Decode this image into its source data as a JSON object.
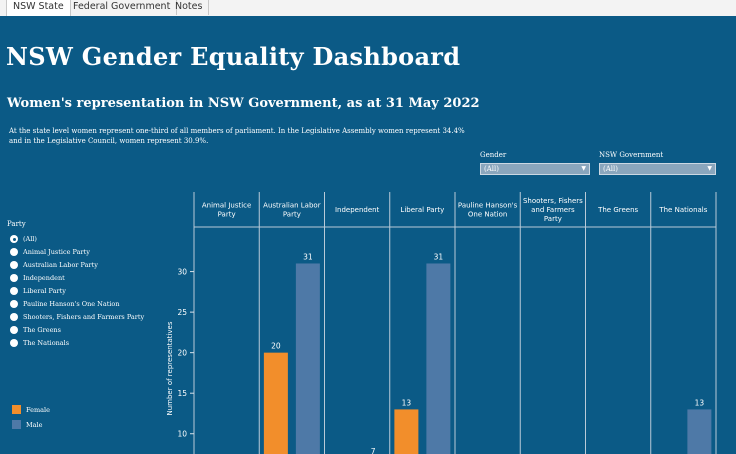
{
  "tabs": [
    {
      "label": "NSW State",
      "active": true
    },
    {
      "label": "Federal Government",
      "active": false
    },
    {
      "label": "Notes",
      "active": false
    }
  ],
  "dashboard": {
    "title": "NSW Gender Equality Dashboard",
    "subtitle": "Women's representation in NSW Government, as at 31 May 2022",
    "description": "At the state level women represent one-third of all members of parliament. In the Legislative Assembly women represent 34.4% and in the Legislative Council, women represent 30.9%."
  },
  "filters": {
    "gender": {
      "label": "Gender",
      "value": "(All)"
    },
    "nsw_government": {
      "label": "NSW Government",
      "value": "(All)"
    }
  },
  "party_filter": {
    "title": "Party",
    "options": [
      "(All)",
      "Animal Justice Party",
      "Australian Labor Party",
      "Independent",
      "Liberal Party",
      "Pauline Hanson's One Nation",
      "Shooters, Fishers and Farmers Party",
      "The Greens",
      "The Nationals"
    ],
    "selected": "(All)"
  },
  "colors": {
    "background": "#0b5a86",
    "female": "#f28e2b",
    "male": "#4e79a7"
  },
  "chart_data": {
    "type": "bar",
    "ylabel": "Number of representatives",
    "ylim": [
      7.5,
      35.5
    ],
    "yticks": [
      10,
      15,
      20,
      25,
      30
    ],
    "categories": [
      "Animal Justice Party",
      "Australian Labor Party",
      "Independent",
      "Liberal Party",
      "Pauline Hanson's One Nation",
      "Shooters, Fishers and Farmers Party",
      "The Greens",
      "The Nationals"
    ],
    "category_labels": [
      [
        "Animal Justice",
        "Party"
      ],
      [
        "Australian Labor",
        "Party"
      ],
      [
        "Independent"
      ],
      [
        "Liberal Party"
      ],
      [
        "Pauline Hanson's",
        "One Nation"
      ],
      [
        "Shooters, Fishers",
        "and Farmers",
        "Party"
      ],
      [
        "The Greens"
      ],
      [
        "The Nationals"
      ]
    ],
    "series": [
      {
        "name": "Female",
        "values": [
          null,
          20,
          null,
          13,
          null,
          null,
          null,
          null
        ]
      },
      {
        "name": "Male",
        "values": [
          null,
          31,
          7,
          31,
          null,
          null,
          null,
          13
        ]
      }
    ],
    "legend": "bottom-left"
  }
}
